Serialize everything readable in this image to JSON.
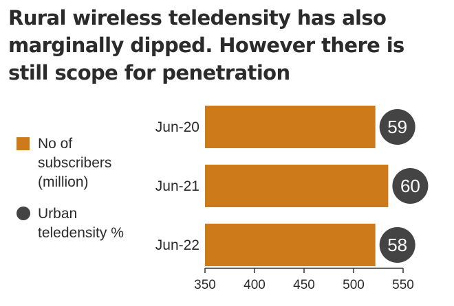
{
  "chart_data": {
    "type": "bar",
    "orientation": "horizontal",
    "title": "Rural wireless teledensity has also marginally dipped. However there is still scope for penetration",
    "categories": [
      "Jun-20",
      "Jun-21",
      "Jun-22"
    ],
    "series": [
      {
        "name": "No of subscribers (million)",
        "values": [
          522,
          535,
          522
        ]
      },
      {
        "name": "Urban teledensity %",
        "values": [
          59,
          60,
          58
        ]
      }
    ],
    "xlim": [
      350,
      550
    ],
    "xticks": [
      "350",
      "400",
      "450",
      "500",
      "550"
    ],
    "legend_position": "left",
    "grid": false,
    "colors": {
      "bar": "#cd7b1a",
      "dot": "#444444",
      "dot_text": "#ffffff",
      "axis": "#333333"
    }
  }
}
